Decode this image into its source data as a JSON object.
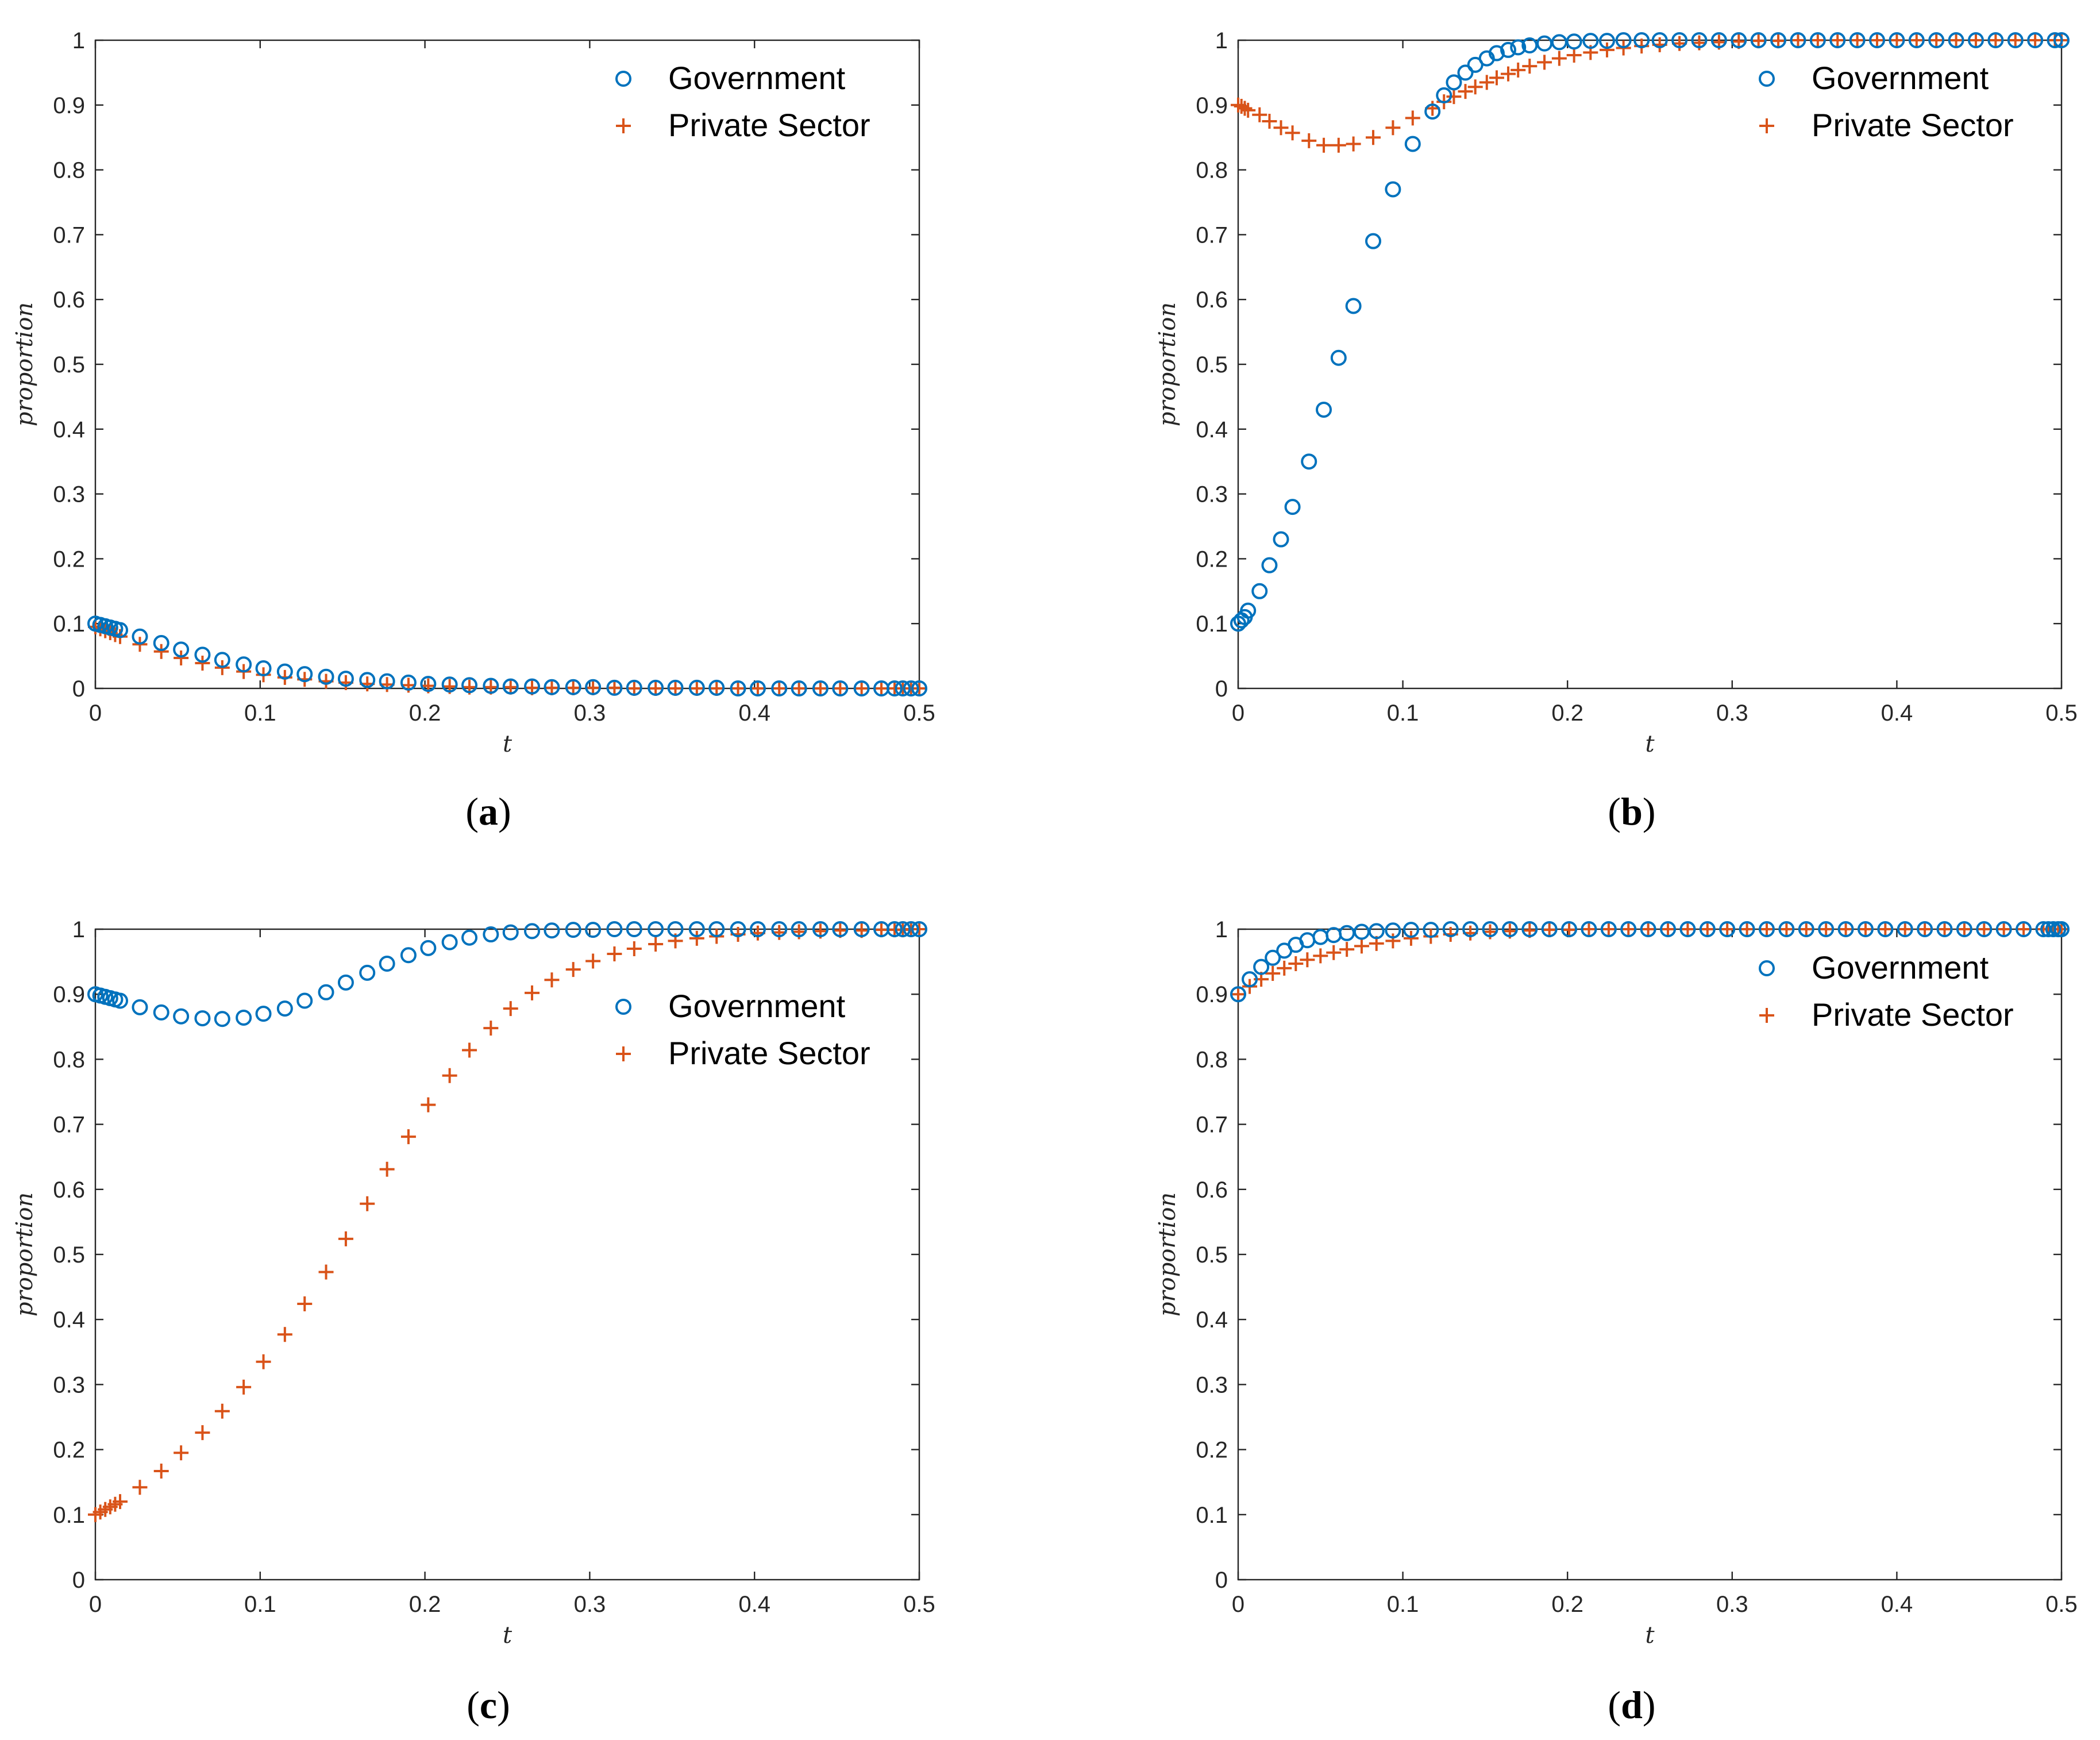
{
  "colors": {
    "government": "#0072BD",
    "private_sector": "#D95319",
    "axis": "#262626"
  },
  "chart_data": [
    {
      "type": "scatter",
      "panel_label": "a",
      "xlabel": "t",
      "ylabel": "proportion",
      "xlim": [
        0,
        0.5
      ],
      "ylim": [
        0,
        1
      ],
      "xticks": [
        "0",
        "0.1",
        "0.2",
        "0.3",
        "0.4",
        "0.5"
      ],
      "yticks": [
        "0",
        "0.1",
        "0.2",
        "0.3",
        "0.4",
        "0.5",
        "0.6",
        "0.7",
        "0.8",
        "0.9",
        "1"
      ],
      "legend_position": "top-right",
      "series": [
        {
          "name": "Government",
          "marker": "circle",
          "x": [
            0,
            0.003,
            0.006,
            0.009,
            0.012,
            0.015,
            0.027,
            0.04,
            0.052,
            0.065,
            0.077,
            0.09,
            0.102,
            0.115,
            0.127,
            0.14,
            0.152,
            0.165,
            0.177,
            0.19,
            0.202,
            0.215,
            0.227,
            0.24,
            0.252,
            0.265,
            0.277,
            0.29,
            0.302,
            0.315,
            0.327,
            0.34,
            0.352,
            0.365,
            0.377,
            0.39,
            0.402,
            0.415,
            0.427,
            0.44,
            0.452,
            0.465,
            0.477,
            0.485,
            0.49,
            0.495,
            0.5
          ],
          "y": [
            0.1,
            0.098,
            0.096,
            0.094,
            0.092,
            0.09,
            0.08,
            0.07,
            0.06,
            0.052,
            0.044,
            0.037,
            0.031,
            0.026,
            0.022,
            0.018,
            0.015,
            0.013,
            0.011,
            0.009,
            0.007,
            0.006,
            0.005,
            0.004,
            0.003,
            0.003,
            0.002,
            0.002,
            0.002,
            0.001,
            0.001,
            0.001,
            0.001,
            0.001,
            0.001,
            0.0,
            0.0,
            0.0,
            0.0,
            0.0,
            0.0,
            0.0,
            0.0,
            0.0,
            0.0,
            0.0,
            0.0
          ]
        },
        {
          "name": "Private Sector",
          "marker": "plus",
          "x": [
            0,
            0.003,
            0.006,
            0.009,
            0.012,
            0.015,
            0.027,
            0.04,
            0.052,
            0.065,
            0.077,
            0.09,
            0.102,
            0.115,
            0.127,
            0.14,
            0.152,
            0.165,
            0.177,
            0.19,
            0.202,
            0.215,
            0.227,
            0.24,
            0.252,
            0.265,
            0.277,
            0.29,
            0.302,
            0.315,
            0.327,
            0.34,
            0.352,
            0.365,
            0.377,
            0.39,
            0.402,
            0.415,
            0.427,
            0.44,
            0.452,
            0.465,
            0.477,
            0.485,
            0.49,
            0.495,
            0.5
          ],
          "y": [
            0.095,
            0.092,
            0.089,
            0.086,
            0.083,
            0.08,
            0.068,
            0.057,
            0.047,
            0.039,
            0.032,
            0.026,
            0.021,
            0.017,
            0.014,
            0.011,
            0.009,
            0.007,
            0.006,
            0.005,
            0.004,
            0.003,
            0.002,
            0.002,
            0.002,
            0.001,
            0.001,
            0.001,
            0.001,
            0.001,
            0.0,
            0.0,
            0.0,
            0.0,
            0.0,
            0.0,
            0.0,
            0.0,
            0.0,
            0.0,
            0.0,
            0.0,
            0.0,
            0.0,
            0.0,
            0.0,
            0.0
          ]
        }
      ]
    },
    {
      "type": "scatter",
      "panel_label": "b",
      "xlabel": "t",
      "ylabel": "proportion",
      "xlim": [
        0,
        0.5
      ],
      "ylim": [
        0,
        1
      ],
      "xticks": [
        "0",
        "0.1",
        "0.2",
        "0.3",
        "0.4",
        "0.5"
      ],
      "yticks": [
        "0",
        "0.1",
        "0.2",
        "0.3",
        "0.4",
        "0.5",
        "0.6",
        "0.7",
        "0.8",
        "0.9",
        "1"
      ],
      "legend_position": "top-right",
      "series": [
        {
          "name": "Government",
          "marker": "circle",
          "x": [
            0,
            0.002,
            0.004,
            0.006,
            0.013,
            0.019,
            0.026,
            0.033,
            0.043,
            0.052,
            0.061,
            0.07,
            0.082,
            0.094,
            0.106,
            0.118,
            0.125,
            0.131,
            0.138,
            0.144,
            0.151,
            0.157,
            0.164,
            0.17,
            0.177,
            0.186,
            0.195,
            0.204,
            0.214,
            0.224,
            0.234,
            0.245,
            0.256,
            0.268,
            0.28,
            0.292,
            0.304,
            0.316,
            0.328,
            0.34,
            0.352,
            0.364,
            0.376,
            0.388,
            0.4,
            0.412,
            0.424,
            0.436,
            0.448,
            0.46,
            0.472,
            0.484,
            0.496,
            0.5
          ],
          "y": [
            0.1,
            0.105,
            0.11,
            0.12,
            0.15,
            0.19,
            0.23,
            0.28,
            0.35,
            0.43,
            0.51,
            0.59,
            0.69,
            0.77,
            0.84,
            0.89,
            0.915,
            0.935,
            0.95,
            0.962,
            0.972,
            0.98,
            0.985,
            0.989,
            0.992,
            0.995,
            0.997,
            0.998,
            0.999,
            0.999,
            1.0,
            1.0,
            1.0,
            1.0,
            1.0,
            1.0,
            1.0,
            1.0,
            1.0,
            1.0,
            1.0,
            1.0,
            1.0,
            1.0,
            1.0,
            1.0,
            1.0,
            1.0,
            1.0,
            1.0,
            1.0,
            1.0,
            1.0,
            1.0
          ]
        },
        {
          "name": "Private Sector",
          "marker": "plus",
          "x": [
            0,
            0.002,
            0.004,
            0.006,
            0.013,
            0.019,
            0.026,
            0.033,
            0.043,
            0.052,
            0.061,
            0.07,
            0.082,
            0.094,
            0.106,
            0.118,
            0.125,
            0.131,
            0.138,
            0.144,
            0.151,
            0.157,
            0.164,
            0.17,
            0.177,
            0.186,
            0.195,
            0.204,
            0.214,
            0.224,
            0.234,
            0.245,
            0.256,
            0.268,
            0.28,
            0.292,
            0.304,
            0.316,
            0.328,
            0.34,
            0.352,
            0.364,
            0.376,
            0.388,
            0.4,
            0.412,
            0.424,
            0.436,
            0.448,
            0.46,
            0.472,
            0.484,
            0.496,
            0.5
          ],
          "y": [
            0.9,
            0.898,
            0.895,
            0.892,
            0.885,
            0.875,
            0.865,
            0.857,
            0.845,
            0.838,
            0.838,
            0.84,
            0.85,
            0.865,
            0.88,
            0.895,
            0.905,
            0.913,
            0.921,
            0.928,
            0.935,
            0.942,
            0.948,
            0.954,
            0.96,
            0.966,
            0.972,
            0.977,
            0.981,
            0.985,
            0.988,
            0.991,
            0.993,
            0.995,
            0.996,
            0.997,
            0.998,
            0.999,
            0.999,
            1.0,
            1.0,
            1.0,
            1.0,
            1.0,
            1.0,
            1.0,
            1.0,
            1.0,
            1.0,
            1.0,
            1.0,
            1.0,
            1.0,
            1.0
          ]
        }
      ]
    },
    {
      "type": "scatter",
      "panel_label": "c",
      "xlabel": "t",
      "ylabel": "proportion",
      "xlim": [
        0,
        0.5
      ],
      "ylim": [
        0,
        1
      ],
      "xticks": [
        "0",
        "0.1",
        "0.2",
        "0.3",
        "0.4",
        "0.5"
      ],
      "yticks": [
        "0",
        "0.1",
        "0.2",
        "0.3",
        "0.4",
        "0.5",
        "0.6",
        "0.7",
        "0.8",
        "0.9",
        "1"
      ],
      "legend_position": "top-right",
      "series": [
        {
          "name": "Government",
          "marker": "circle",
          "x": [
            0,
            0.003,
            0.006,
            0.009,
            0.012,
            0.015,
            0.027,
            0.04,
            0.052,
            0.065,
            0.077,
            0.09,
            0.102,
            0.115,
            0.127,
            0.14,
            0.152,
            0.165,
            0.177,
            0.19,
            0.202,
            0.215,
            0.227,
            0.24,
            0.252,
            0.265,
            0.277,
            0.29,
            0.302,
            0.315,
            0.327,
            0.34,
            0.352,
            0.365,
            0.377,
            0.39,
            0.402,
            0.415,
            0.427,
            0.44,
            0.452,
            0.465,
            0.477,
            0.485,
            0.49,
            0.495,
            0.5
          ],
          "y": [
            0.9,
            0.898,
            0.896,
            0.894,
            0.892,
            0.89,
            0.88,
            0.872,
            0.866,
            0.863,
            0.862,
            0.864,
            0.87,
            0.878,
            0.89,
            0.903,
            0.918,
            0.933,
            0.947,
            0.96,
            0.971,
            0.98,
            0.987,
            0.992,
            0.995,
            0.997,
            0.998,
            0.999,
            0.999,
            1.0,
            1.0,
            1.0,
            1.0,
            1.0,
            1.0,
            1.0,
            1.0,
            1.0,
            1.0,
            1.0,
            1.0,
            1.0,
            1.0,
            1.0,
            1.0,
            1.0,
            1.0
          ]
        },
        {
          "name": "Private Sector",
          "marker": "plus",
          "x": [
            0,
            0.003,
            0.006,
            0.009,
            0.012,
            0.015,
            0.027,
            0.04,
            0.052,
            0.065,
            0.077,
            0.09,
            0.102,
            0.115,
            0.127,
            0.14,
            0.152,
            0.165,
            0.177,
            0.19,
            0.202,
            0.215,
            0.227,
            0.24,
            0.252,
            0.265,
            0.277,
            0.29,
            0.302,
            0.315,
            0.327,
            0.34,
            0.352,
            0.365,
            0.377,
            0.39,
            0.402,
            0.415,
            0.427,
            0.44,
            0.452,
            0.465,
            0.477,
            0.485,
            0.49,
            0.495,
            0.5
          ],
          "y": [
            0.1,
            0.104,
            0.108,
            0.112,
            0.116,
            0.12,
            0.142,
            0.167,
            0.195,
            0.226,
            0.259,
            0.296,
            0.335,
            0.377,
            0.424,
            0.473,
            0.524,
            0.578,
            0.631,
            0.681,
            0.73,
            0.775,
            0.814,
            0.848,
            0.878,
            0.902,
            0.922,
            0.938,
            0.951,
            0.962,
            0.97,
            0.977,
            0.982,
            0.986,
            0.989,
            0.992,
            0.994,
            0.995,
            0.996,
            0.997,
            0.998,
            0.998,
            0.999,
            0.999,
            0.999,
            1.0,
            1.0
          ]
        }
      ]
    },
    {
      "type": "scatter",
      "panel_label": "d",
      "xlabel": "t",
      "ylabel": "proportion",
      "xlim": [
        0,
        0.5
      ],
      "ylim": [
        0,
        1
      ],
      "xticks": [
        "0",
        "0.1",
        "0.2",
        "0.3",
        "0.4",
        "0.5"
      ],
      "yticks": [
        "0",
        "0.1",
        "0.2",
        "0.3",
        "0.4",
        "0.5",
        "0.6",
        "0.7",
        "0.8",
        "0.9",
        "1"
      ],
      "legend_position": "top-right",
      "series": [
        {
          "name": "Government",
          "marker": "circle",
          "x": [
            0,
            0.007,
            0.014,
            0.021,
            0.028,
            0.035,
            0.042,
            0.05,
            0.058,
            0.066,
            0.075,
            0.084,
            0.094,
            0.105,
            0.117,
            0.129,
            0.141,
            0.153,
            0.165,
            0.177,
            0.189,
            0.201,
            0.213,
            0.225,
            0.237,
            0.249,
            0.261,
            0.273,
            0.285,
            0.297,
            0.309,
            0.321,
            0.333,
            0.345,
            0.357,
            0.369,
            0.381,
            0.393,
            0.405,
            0.417,
            0.429,
            0.441,
            0.453,
            0.465,
            0.477,
            0.489,
            0.492,
            0.495,
            0.498,
            0.5
          ],
          "y": [
            0.9,
            0.923,
            0.942,
            0.956,
            0.967,
            0.976,
            0.983,
            0.988,
            0.991,
            0.994,
            0.996,
            0.997,
            0.998,
            0.999,
            0.999,
            1.0,
            1.0,
            1.0,
            1.0,
            1.0,
            1.0,
            1.0,
            1.0,
            1.0,
            1.0,
            1.0,
            1.0,
            1.0,
            1.0,
            1.0,
            1.0,
            1.0,
            1.0,
            1.0,
            1.0,
            1.0,
            1.0,
            1.0,
            1.0,
            1.0,
            1.0,
            1.0,
            1.0,
            1.0,
            1.0,
            1.0,
            1.0,
            1.0,
            1.0,
            1.0
          ]
        },
        {
          "name": "Private Sector",
          "marker": "plus",
          "x": [
            0,
            0.007,
            0.014,
            0.021,
            0.028,
            0.035,
            0.042,
            0.05,
            0.058,
            0.066,
            0.075,
            0.084,
            0.094,
            0.105,
            0.117,
            0.129,
            0.141,
            0.153,
            0.165,
            0.177,
            0.189,
            0.201,
            0.213,
            0.225,
            0.237,
            0.249,
            0.261,
            0.273,
            0.285,
            0.297,
            0.309,
            0.321,
            0.333,
            0.345,
            0.357,
            0.369,
            0.381,
            0.393,
            0.405,
            0.417,
            0.429,
            0.441,
            0.453,
            0.465,
            0.477,
            0.489,
            0.492,
            0.495,
            0.498,
            0.5
          ],
          "y": [
            0.9,
            0.912,
            0.923,
            0.932,
            0.94,
            0.947,
            0.953,
            0.959,
            0.964,
            0.969,
            0.974,
            0.978,
            0.982,
            0.986,
            0.989,
            0.992,
            0.994,
            0.996,
            0.997,
            0.998,
            0.999,
            0.999,
            1.0,
            1.0,
            1.0,
            1.0,
            1.0,
            1.0,
            1.0,
            1.0,
            1.0,
            1.0,
            1.0,
            1.0,
            1.0,
            1.0,
            1.0,
            1.0,
            1.0,
            1.0,
            1.0,
            1.0,
            1.0,
            1.0,
            1.0,
            1.0,
            1.0,
            1.0,
            1.0,
            1.0
          ]
        }
      ]
    }
  ]
}
